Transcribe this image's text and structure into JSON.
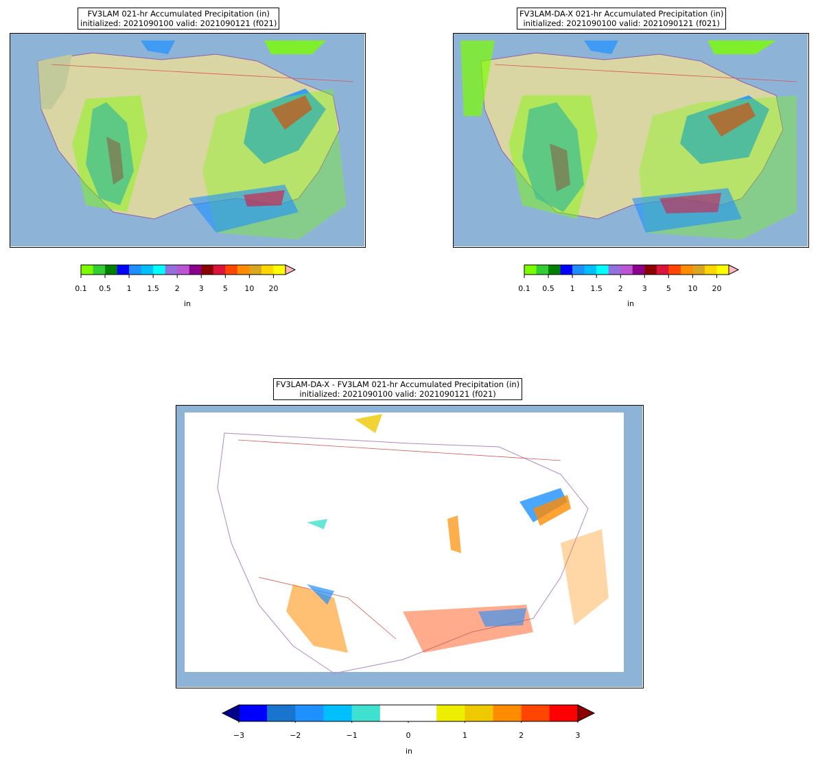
{
  "panels": [
    {
      "id": "left",
      "title_line1": "FV3LAM 021-hr Accumulated Precipitation (in)",
      "title_line2": "initialized: 2021090100 valid: 2021090121 (f021)"
    },
    {
      "id": "right",
      "title_line1": "FV3LAM-DA-X 021-hr Accumulated Precipitation (in)",
      "title_line2": "initialized: 2021090100 valid: 2021090121 (f021)"
    },
    {
      "id": "diff",
      "title_line1": "FV3LAM-DA-X - FV3LAM 021-hr Accumulated Precipitation (in)",
      "title_line2": "initialized: 2021090100 valid: 2021090121 (f021)"
    }
  ],
  "precip_colorbar": {
    "colors": [
      "#7cfc00",
      "#32cd32",
      "#008000",
      "#0000ff",
      "#1e90ff",
      "#00bfff",
      "#00ffff",
      "#9370db",
      "#ba55d3",
      "#8b008b",
      "#8b0000",
      "#dc143c",
      "#ff4500",
      "#ff8c00",
      "#daa520",
      "#ffd700",
      "#ffff00"
    ],
    "extend_color": "#ffb6c1",
    "tick_labels": [
      "0.1",
      "0.5",
      "1",
      "1.5",
      "2",
      "3",
      "5",
      "10",
      "20"
    ],
    "units": "in"
  },
  "diff_colorbar": {
    "colors": [
      "#0000ff",
      "#1874cd",
      "#1e90ff",
      "#00bfff",
      "#40e0d0",
      "#ffffff",
      "#ffffff",
      "#eeee00",
      "#eec900",
      "#ff8c00",
      "#ff4500",
      "#ff0000"
    ],
    "under_color": "#00008b",
    "over_color": "#8b0000",
    "tick_labels": [
      "−3",
      "−2",
      "−1",
      "0",
      "1",
      "2",
      "3"
    ],
    "units": "in"
  }
}
